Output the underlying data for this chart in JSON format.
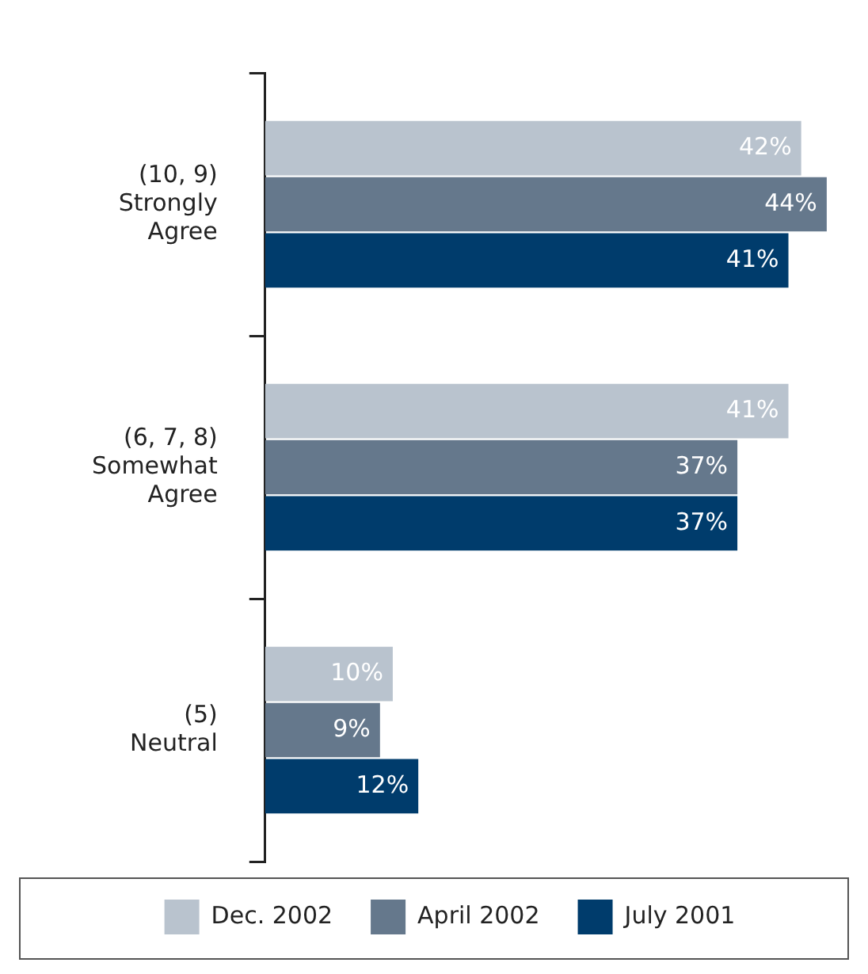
{
  "chart_data": {
    "type": "bar",
    "orientation": "horizontal",
    "categories": [
      "(10, 9)\nStrongly\nAgree",
      "(6, 7, 8)\nSomewhat\nAgree",
      "(5)\nNeutral"
    ],
    "series": [
      {
        "name": "Dec. 2002",
        "color": "#b9c3ce",
        "values": [
          42,
          41,
          10
        ],
        "value_labels": [
          "42%",
          "41%",
          "10%"
        ]
      },
      {
        "name": "April 2002",
        "color": "#65788c",
        "values": [
          44,
          37,
          9
        ],
        "value_labels": [
          "44%",
          "37%",
          "9%"
        ]
      },
      {
        "name": "July 2001",
        "color": "#003c6c",
        "values": [
          41,
          37,
          12
        ],
        "value_labels": [
          "41%",
          "37%",
          "12%"
        ]
      }
    ],
    "grid": false,
    "legend": "bottom",
    "tick_labels": "y"
  }
}
